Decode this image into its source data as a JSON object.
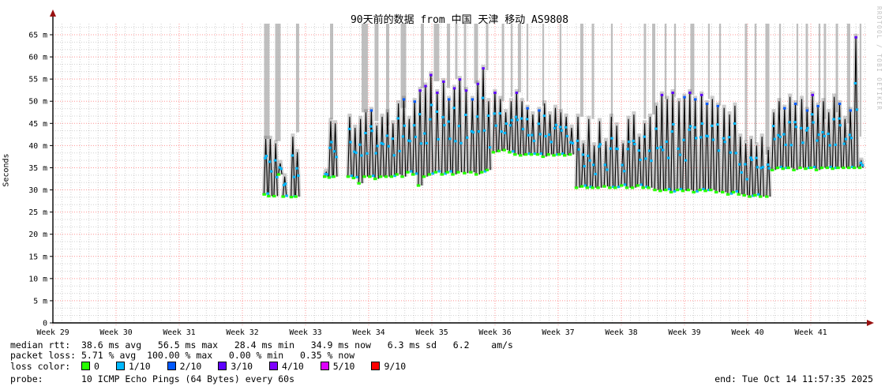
{
  "title": "90天前的数据 from 中国 天津 移动 AS9808",
  "watermark": "RRDTOOL / TOBI OETIKER",
  "stats": {
    "median": {
      "label": "median rtt:",
      "text": "38.6 ms avg   56.5 ms max   28.4 ms min   34.9 ms now   6.3 ms sd   6.2    am/s"
    },
    "packet_loss": {
      "label": "packet loss:",
      "text": "5.71 % avg  100.00 % max   0.00 % min   0.35 % now"
    },
    "loss_color": {
      "label": "loss color:",
      "legend": [
        {
          "color": "#26ff00",
          "label": "0"
        },
        {
          "color": "#00b8ff",
          "label": "1/10"
        },
        {
          "color": "#0059ff",
          "label": "2/10"
        },
        {
          "color": "#5e00ff",
          "label": "3/10"
        },
        {
          "color": "#7e00ff",
          "label": "4/10"
        },
        {
          "color": "#dd00ff",
          "label": "5/10"
        },
        {
          "color": "#ff0000",
          "label": "9/10"
        }
      ]
    },
    "probe": {
      "label": "probe:",
      "text": "10 ICMP Echo Pings (64 Bytes) every 60s"
    },
    "end_text": "end: Tue Oct 14 11:57:35 2025"
  },
  "chart_data": {
    "type": "line",
    "title": "90天前的数据 from 中国 天津 移动 AS9808",
    "ylabel": "Seconds",
    "y_unit": "ms",
    "ylim": [
      0,
      65
    ],
    "y_major_step_ms": 5,
    "y_tick_labels": [
      "0",
      "5 m",
      "10 m",
      "15 m",
      "20 m",
      "25 m",
      "30 m",
      "35 m",
      "40 m",
      "45 m",
      "50 m",
      "55 m",
      "60 m",
      "65 m"
    ],
    "x_tick_labels": [
      "Week 29",
      "Week 30",
      "Week 31",
      "Week 32",
      "Week 33",
      "Week 34",
      "Week 35",
      "Week 36",
      "Week 37",
      "Week 38",
      "Week 39",
      "Week 40",
      "Week 41"
    ],
    "x_span_days": 90.2,
    "grid": {
      "minor_per_major_y": 3,
      "minor_per_week_x": 7
    },
    "colors": {
      "median_line": "#000000",
      "smoke": "rgba(90,90,90,0.30)",
      "loss_bar": "rgba(175,175,175,0.8)",
      "grid_minor": "rgba(0,0,0,0.18)",
      "grid_major": "rgba(255,60,60,0.55)",
      "axis": "#000000",
      "arrow": "#991111",
      "dot_ok": "#26ff00",
      "dot_loss1": "#00b8ff",
      "dot_loss2": "#0059ff",
      "dot_loss3": "#5e00ff"
    },
    "spike_format": [
      "day_from_week29_start",
      "base_ms",
      "peak_ms"
    ],
    "spikes": [
      [
        23.4,
        29,
        41.5
      ],
      [
        23.9,
        28.6,
        41.5
      ],
      [
        24.5,
        28.6,
        40.5
      ],
      [
        25.0,
        33.5,
        36
      ],
      [
        25.5,
        28.5,
        33
      ],
      [
        26.4,
        28.4,
        42
      ],
      [
        26.9,
        28.5,
        38.5
      ],
      [
        30.1,
        33,
        34
      ],
      [
        30.6,
        32.8,
        45.5
      ],
      [
        31.1,
        33,
        45
      ],
      [
        32.7,
        33,
        46.5
      ],
      [
        33.3,
        32.7,
        44
      ],
      [
        33.9,
        31.5,
        46
      ],
      [
        34.5,
        33,
        47.5
      ],
      [
        35.1,
        33,
        48
      ],
      [
        35.7,
        32.5,
        44.5
      ],
      [
        36.3,
        33,
        46.5
      ],
      [
        36.9,
        33,
        47.5
      ],
      [
        37.5,
        33,
        45
      ],
      [
        38.1,
        33.5,
        49.5
      ],
      [
        38.7,
        33,
        50.5
      ],
      [
        39.3,
        34,
        46
      ],
      [
        39.9,
        33.5,
        50
      ],
      [
        40.5,
        31,
        52.5
      ],
      [
        41.1,
        33,
        53.5
      ],
      [
        41.7,
        33.5,
        56
      ],
      [
        42.4,
        34,
        52
      ],
      [
        43.1,
        33.5,
        54.5
      ],
      [
        43.7,
        34,
        50.5
      ],
      [
        44.3,
        33.5,
        53
      ],
      [
        44.9,
        34,
        55
      ],
      [
        45.6,
        33.8,
        52.5
      ],
      [
        46.3,
        34,
        50.5
      ],
      [
        46.9,
        33.5,
        54
      ],
      [
        47.5,
        34,
        57.5
      ],
      [
        48.1,
        34.5,
        50
      ],
      [
        48.8,
        38.5,
        52
      ],
      [
        49.4,
        38.8,
        50.5
      ],
      [
        50.0,
        39,
        47.5
      ],
      [
        50.6,
        38.5,
        50
      ],
      [
        51.2,
        38,
        52
      ],
      [
        51.8,
        37.8,
        50
      ],
      [
        52.4,
        38,
        48.5
      ],
      [
        53.0,
        38,
        47
      ],
      [
        53.7,
        38,
        48
      ],
      [
        54.3,
        37.5,
        49.5
      ],
      [
        54.9,
        38,
        47
      ],
      [
        55.5,
        37.8,
        48.5
      ],
      [
        56.1,
        38,
        47.5
      ],
      [
        56.7,
        37.8,
        46.5
      ],
      [
        57.3,
        38,
        44
      ],
      [
        58.0,
        30.5,
        46.5
      ],
      [
        58.6,
        30.8,
        40.5
      ],
      [
        59.2,
        30.5,
        46
      ],
      [
        59.8,
        30.5,
        40
      ],
      [
        60.4,
        30.5,
        45.5
      ],
      [
        61.1,
        30.8,
        41
      ],
      [
        61.7,
        30.5,
        46.5
      ],
      [
        62.3,
        30.5,
        44.5
      ],
      [
        63.0,
        31,
        40.5
      ],
      [
        63.6,
        30.5,
        46
      ],
      [
        64.2,
        30.5,
        47
      ],
      [
        64.8,
        31,
        42
      ],
      [
        65.4,
        30.5,
        45
      ],
      [
        66.0,
        30.5,
        46.5
      ],
      [
        66.7,
        30,
        49
      ],
      [
        67.3,
        29.8,
        51.5
      ],
      [
        67.9,
        30,
        50.5
      ],
      [
        68.5,
        29.5,
        52
      ],
      [
        69.2,
        30,
        50
      ],
      [
        69.8,
        29.8,
        51
      ],
      [
        70.4,
        30,
        52
      ],
      [
        71.0,
        29.5,
        50.5
      ],
      [
        71.7,
        30,
        51.5
      ],
      [
        72.3,
        29.8,
        49.5
      ],
      [
        72.9,
        30,
        50.5
      ],
      [
        73.5,
        29.5,
        49
      ],
      [
        74.2,
        29.5,
        48.5
      ],
      [
        74.8,
        29,
        47
      ],
      [
        75.4,
        29.5,
        49
      ],
      [
        76.0,
        29,
        42
      ],
      [
        76.6,
        28.8,
        40.5
      ],
      [
        77.2,
        28.5,
        41.5
      ],
      [
        77.8,
        28.8,
        40
      ],
      [
        78.4,
        28.5,
        42
      ],
      [
        79.1,
        28.5,
        39
      ],
      [
        79.7,
        34.5,
        47.5
      ],
      [
        80.3,
        35,
        50
      ],
      [
        80.9,
        34.8,
        48.5
      ],
      [
        81.5,
        35,
        51
      ],
      [
        82.1,
        34.5,
        49.5
      ],
      [
        82.8,
        35,
        50.5
      ],
      [
        83.4,
        34.8,
        48
      ],
      [
        84.0,
        35,
        51.5
      ],
      [
        84.6,
        34.5,
        49
      ],
      [
        85.2,
        35,
        50
      ],
      [
        85.8,
        35,
        47.5
      ],
      [
        86.4,
        34.8,
        51
      ],
      [
        87.0,
        35,
        49.5
      ],
      [
        87.6,
        35,
        46
      ],
      [
        88.2,
        35,
        48
      ],
      [
        88.8,
        35,
        64.5
      ],
      [
        89.4,
        35,
        36.5
      ]
    ],
    "loss_bar_format": [
      "day_from_week29_start",
      "width_days",
      "bottom_ms_from_top"
    ],
    "loss_bars": [
      [
        23.71,
        0.61,
        41.5
      ],
      [
        24.94,
        0.61,
        41
      ],
      [
        27.12,
        0.35,
        43
      ],
      [
        30.89,
        0.35,
        46
      ],
      [
        34.56,
        0.7,
        47.5
      ],
      [
        35.87,
        0.44,
        45.5
      ],
      [
        37.1,
        0.35,
        44.5
      ],
      [
        38.85,
        0.61,
        48.5
      ],
      [
        40.95,
        0.35,
        53
      ],
      [
        42.52,
        0.61,
        54.5
      ],
      [
        43.84,
        0.35,
        53
      ],
      [
        44.71,
        0.26,
        55
      ],
      [
        45.68,
        0.26,
        52.5
      ],
      [
        46.9,
        0.44,
        54
      ],
      [
        48.13,
        0.26,
        57
      ],
      [
        49.88,
        0.26,
        50
      ],
      [
        50.84,
        0.2,
        51
      ],
      [
        51.71,
        0.35,
        52
      ],
      [
        52.59,
        0.2,
        50
      ],
      [
        54.34,
        0.2,
        49
      ],
      [
        56.26,
        0.2,
        47.5
      ],
      [
        58.62,
        0.35,
        46.5
      ],
      [
        59.85,
        0.26,
        46
      ],
      [
        61.95,
        0.2,
        45.5
      ],
      [
        65.62,
        0.26,
        46
      ],
      [
        66.59,
        0.35,
        47
      ],
      [
        67.9,
        0.2,
        50.5
      ],
      [
        68.95,
        0.2,
        51
      ],
      [
        70.87,
        0.44,
        51.5
      ],
      [
        72.71,
        0.2,
        50.5
      ],
      [
        73.94,
        0.2,
        49
      ],
      [
        76.82,
        0.26,
        41
      ],
      [
        77.87,
        0.2,
        40.5
      ],
      [
        79.19,
        0.44,
        38
      ],
      [
        80.59,
        0.2,
        48
      ],
      [
        82.51,
        0.2,
        49
      ],
      [
        83.56,
        0.26,
        45.5
      ],
      [
        84.96,
        0.2,
        49.5
      ],
      [
        85.57,
        0.26,
        46
      ],
      [
        86.89,
        0.26,
        47.5
      ],
      [
        88.2,
        0.35,
        45
      ],
      [
        89.51,
        0.2,
        42
      ]
    ],
    "stats_echo": {
      "median_rtt": {
        "avg_ms": 38.6,
        "max_ms": 56.5,
        "min_ms": 28.4,
        "now_ms": 34.9,
        "sd_ms": 6.3,
        "am_per_s": 6.2
      },
      "packet_loss": {
        "avg_pct": 5.71,
        "max_pct": 100.0,
        "min_pct": 0.0,
        "now_pct": 0.35
      }
    }
  }
}
